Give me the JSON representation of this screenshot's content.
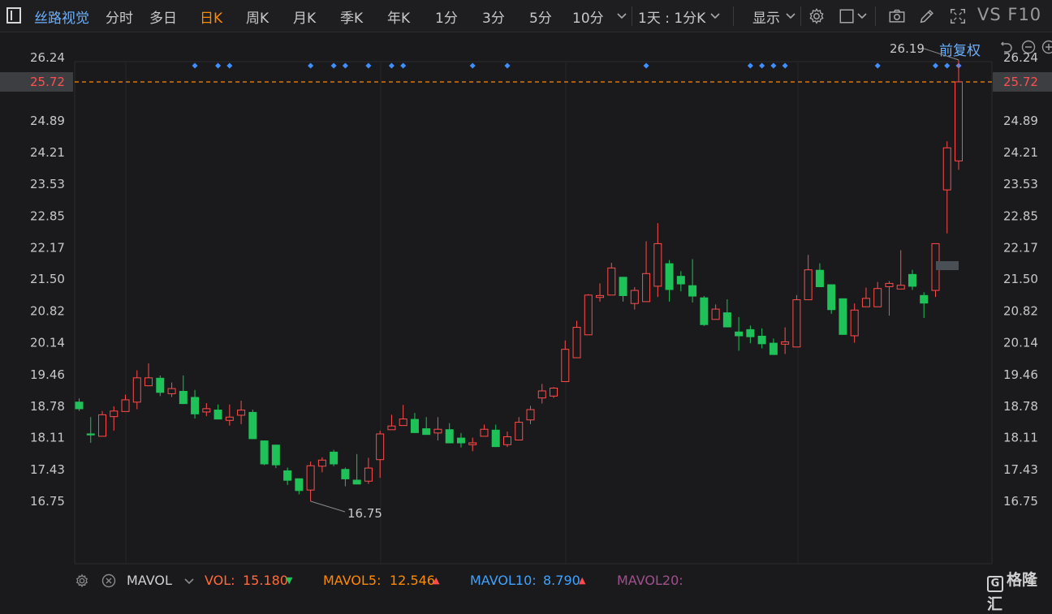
{
  "toolbar": {
    "stock_name": "丝路视觉",
    "periods": [
      "分时",
      "多日",
      "日K",
      "周K",
      "月K",
      "季K",
      "年K",
      "1分",
      "3分",
      "5分",
      "10分"
    ],
    "active_period": "日K",
    "interval_select": "1天 : 1分K",
    "display_menu": "显示",
    "vs_f10": "VS F10",
    "icons": [
      "settings-icon",
      "layout-icon",
      "camera-icon",
      "pencil-icon",
      "fullscreen-icon"
    ]
  },
  "price_adjust": "前复权",
  "colors": {
    "up": "#ff4b4b",
    "down": "#1ec258",
    "accent": "#ff8a00",
    "link": "#6ab0ff",
    "vol": "#ff6b3b",
    "mavol5": "#ff8a00",
    "mavol10": "#3fa3ff",
    "mavol20": "#a0508c"
  },
  "chart_data": {
    "type": "candlestick",
    "ylim": [
      16.4,
      26.65
    ],
    "y_ticks": [
      "26.24",
      "25.72",
      "24.89",
      "24.21",
      "23.53",
      "22.85",
      "22.17",
      "21.50",
      "20.82",
      "20.14",
      "19.46",
      "18.78",
      "18.11",
      "17.43",
      "16.75"
    ],
    "last_price": "25.72",
    "high_label": "26.19",
    "low_label": "16.75",
    "candles": [
      {
        "o": 18.88,
        "c": 18.72,
        "h": 18.95,
        "l": 18.68
      },
      {
        "o": 18.2,
        "c": 18.16,
        "h": 18.55,
        "l": 18.0
      },
      {
        "o": 18.14,
        "c": 18.6,
        "h": 18.68,
        "l": 18.14
      },
      {
        "o": 18.56,
        "c": 18.68,
        "h": 18.78,
        "l": 18.26
      },
      {
        "o": 18.67,
        "c": 18.92,
        "h": 19.03,
        "l": 18.67
      },
      {
        "o": 18.87,
        "c": 19.39,
        "h": 19.55,
        "l": 18.72
      },
      {
        "o": 19.22,
        "c": 19.39,
        "h": 19.7,
        "l": 19.22
      },
      {
        "o": 19.39,
        "c": 19.07,
        "h": 19.44,
        "l": 19.0
      },
      {
        "o": 19.05,
        "c": 19.16,
        "h": 19.29,
        "l": 18.98
      },
      {
        "o": 19.11,
        "c": 18.83,
        "h": 19.44,
        "l": 18.83
      },
      {
        "o": 18.98,
        "c": 18.61,
        "h": 19.13,
        "l": 18.52
      },
      {
        "o": 18.66,
        "c": 18.73,
        "h": 18.85,
        "l": 18.57
      },
      {
        "o": 18.71,
        "c": 18.5,
        "h": 18.82,
        "l": 18.5
      },
      {
        "o": 18.48,
        "c": 18.55,
        "h": 18.82,
        "l": 18.37
      },
      {
        "o": 18.59,
        "c": 18.7,
        "h": 18.9,
        "l": 18.4
      },
      {
        "o": 18.66,
        "c": 18.08,
        "h": 18.71,
        "l": 18.08
      },
      {
        "o": 18.05,
        "c": 17.54,
        "h": 18.05,
        "l": 17.52
      },
      {
        "o": 17.96,
        "c": 17.52,
        "h": 17.96,
        "l": 17.46
      },
      {
        "o": 17.41,
        "c": 17.19,
        "h": 17.47,
        "l": 17.1
      },
      {
        "o": 17.24,
        "c": 16.97,
        "h": 17.24,
        "l": 16.9
      },
      {
        "o": 16.99,
        "c": 17.51,
        "h": 17.6,
        "l": 16.75
      },
      {
        "o": 17.5,
        "c": 17.63,
        "h": 17.69,
        "l": 17.37
      },
      {
        "o": 17.81,
        "c": 17.54,
        "h": 17.85,
        "l": 17.5
      },
      {
        "o": 17.44,
        "c": 17.22,
        "h": 17.47,
        "l": 17.07
      },
      {
        "o": 17.21,
        "c": 17.11,
        "h": 17.76,
        "l": 17.11
      },
      {
        "o": 17.18,
        "c": 17.46,
        "h": 17.68,
        "l": 17.12
      },
      {
        "o": 17.64,
        "c": 18.19,
        "h": 18.26,
        "l": 17.25
      },
      {
        "o": 18.28,
        "c": 18.36,
        "h": 18.6,
        "l": 18.28
      },
      {
        "o": 18.37,
        "c": 18.51,
        "h": 18.81,
        "l": 18.37
      },
      {
        "o": 18.51,
        "c": 18.21,
        "h": 18.64,
        "l": 18.21
      },
      {
        "o": 18.31,
        "c": 18.17,
        "h": 18.55,
        "l": 18.17
      },
      {
        "o": 18.21,
        "c": 18.29,
        "h": 18.55,
        "l": 18.05
      },
      {
        "o": 18.29,
        "c": 17.99,
        "h": 18.42,
        "l": 17.99
      },
      {
        "o": 18.11,
        "c": 17.99,
        "h": 18.21,
        "l": 17.9
      },
      {
        "o": 17.96,
        "c": 18.0,
        "h": 18.11,
        "l": 17.82
      },
      {
        "o": 18.14,
        "c": 18.29,
        "h": 18.39,
        "l": 18.14
      },
      {
        "o": 18.28,
        "c": 17.91,
        "h": 18.39,
        "l": 17.91
      },
      {
        "o": 17.96,
        "c": 18.13,
        "h": 18.24,
        "l": 17.91
      },
      {
        "o": 18.06,
        "c": 18.44,
        "h": 18.55,
        "l": 18.06
      },
      {
        "o": 18.49,
        "c": 18.71,
        "h": 18.79,
        "l": 18.4
      },
      {
        "o": 18.96,
        "c": 19.11,
        "h": 19.26,
        "l": 18.84
      },
      {
        "o": 19.0,
        "c": 19.17,
        "h": 19.19,
        "l": 18.96
      },
      {
        "o": 19.31,
        "c": 20.0,
        "h": 20.19,
        "l": 19.31
      },
      {
        "o": 19.82,
        "c": 20.47,
        "h": 20.61,
        "l": 19.82
      },
      {
        "o": 20.31,
        "c": 21.16,
        "h": 21.18,
        "l": 20.31
      },
      {
        "o": 21.11,
        "c": 21.15,
        "h": 21.41,
        "l": 21.02
      },
      {
        "o": 21.16,
        "c": 21.74,
        "h": 21.85,
        "l": 21.16
      },
      {
        "o": 21.55,
        "c": 21.14,
        "h": 21.55,
        "l": 21.02
      },
      {
        "o": 20.98,
        "c": 21.26,
        "h": 21.33,
        "l": 20.85
      },
      {
        "o": 21.02,
        "c": 21.62,
        "h": 22.31,
        "l": 21.02
      },
      {
        "o": 21.35,
        "c": 22.26,
        "h": 22.7,
        "l": 21.12
      },
      {
        "o": 21.84,
        "c": 21.27,
        "h": 21.91,
        "l": 21.02
      },
      {
        "o": 21.57,
        "c": 21.39,
        "h": 21.67,
        "l": 21.24
      },
      {
        "o": 21.37,
        "c": 21.13,
        "h": 21.93,
        "l": 21.0
      },
      {
        "o": 21.11,
        "c": 20.52,
        "h": 21.14,
        "l": 20.5
      },
      {
        "o": 20.64,
        "c": 20.86,
        "h": 20.96,
        "l": 20.64
      },
      {
        "o": 20.79,
        "c": 20.47,
        "h": 21.07,
        "l": 20.47
      },
      {
        "o": 20.38,
        "c": 20.28,
        "h": 20.69,
        "l": 19.97
      },
      {
        "o": 20.43,
        "c": 20.26,
        "h": 20.51,
        "l": 20.13
      },
      {
        "o": 20.29,
        "c": 20.11,
        "h": 20.45,
        "l": 20.02
      },
      {
        "o": 20.14,
        "c": 19.88,
        "h": 20.23,
        "l": 19.88
      },
      {
        "o": 20.11,
        "c": 20.16,
        "h": 20.47,
        "l": 19.9
      },
      {
        "o": 20.05,
        "c": 21.06,
        "h": 21.16,
        "l": 20.05
      },
      {
        "o": 21.06,
        "c": 21.7,
        "h": 22.02,
        "l": 21.06
      },
      {
        "o": 21.7,
        "c": 21.33,
        "h": 21.84,
        "l": 21.33
      },
      {
        "o": 21.39,
        "c": 20.84,
        "h": 21.39,
        "l": 20.76
      },
      {
        "o": 21.09,
        "c": 20.31,
        "h": 21.09,
        "l": 20.31
      },
      {
        "o": 20.29,
        "c": 20.84,
        "h": 20.98,
        "l": 20.14
      },
      {
        "o": 20.91,
        "c": 21.09,
        "h": 21.32,
        "l": 20.91
      },
      {
        "o": 20.91,
        "c": 21.3,
        "h": 21.44,
        "l": 20.91
      },
      {
        "o": 21.34,
        "c": 21.41,
        "h": 21.46,
        "l": 20.72
      },
      {
        "o": 21.29,
        "c": 21.37,
        "h": 22.12,
        "l": 21.29
      },
      {
        "o": 21.61,
        "c": 21.34,
        "h": 21.7,
        "l": 21.27
      },
      {
        "o": 21.16,
        "c": 20.98,
        "h": 21.22,
        "l": 20.67
      },
      {
        "o": 21.26,
        "c": 22.26,
        "h": 22.26,
        "l": 21.12
      },
      {
        "o": 23.41,
        "c": 24.31,
        "h": 24.45,
        "l": 22.48
      },
      {
        "o": 24.03,
        "c": 25.72,
        "h": 26.19,
        "l": 23.84
      }
    ],
    "marker_count": 22,
    "indicator": {
      "name": "MAVOL",
      "vol_label": "VOL:",
      "vol_value": "15.180",
      "vol_trend": "down",
      "mavol5_label": "MAVOL5:",
      "mavol5_value": "12.546",
      "mavol5_trend": "up",
      "mavol10_label": "MAVOL10:",
      "mavol10_value": "8.790",
      "mavol10_trend": "up",
      "mavol20_label": "MAVOL20:"
    }
  },
  "watermark": "格隆汇"
}
